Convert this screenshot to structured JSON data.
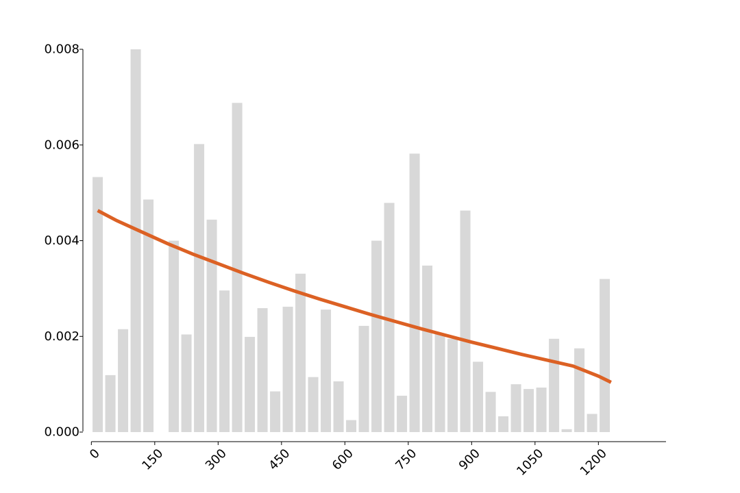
{
  "chart_data": {
    "type": "bar",
    "title": "",
    "xlabel": "",
    "ylabel": "",
    "bar_color": "#d8d8d8",
    "line_color": "#dc6124",
    "bin_width": 30,
    "xlim": [
      -20,
      1360
    ],
    "ylim": [
      -0.0002,
      0.008
    ],
    "x_ticks": [
      0,
      150,
      300,
      450,
      600,
      750,
      900,
      1050,
      1200
    ],
    "x_tick_labels": [
      "0",
      "150",
      "300",
      "450",
      "600",
      "750",
      "900",
      "1050",
      "1200"
    ],
    "y_ticks": [
      0.0,
      0.002,
      0.004,
      0.006,
      0.008
    ],
    "y_tick_labels": [
      "0.000",
      "0.002",
      "0.004",
      "0.006",
      "0.008"
    ],
    "series": [
      {
        "kind": "bar",
        "x": [
          15,
          45,
          75,
          105,
          135,
          165,
          195,
          225,
          255,
          285,
          315,
          345,
          375,
          405,
          435,
          465,
          495,
          525,
          555,
          585,
          615,
          645,
          675,
          705,
          735,
          765,
          795,
          825,
          855,
          885,
          915,
          945,
          975,
          1005,
          1035,
          1065,
          1095,
          1125,
          1155,
          1185,
          1215
        ],
        "values": [
          0.00533,
          0.00119,
          0.00215,
          0.008,
          0.00486,
          0.0,
          0.004,
          0.00204,
          0.00602,
          0.00444,
          0.00296,
          0.00688,
          0.00199,
          0.00259,
          0.00085,
          0.00262,
          0.00331,
          0.00115,
          0.00256,
          0.00106,
          0.00025,
          0.00222,
          0.004,
          0.00479,
          0.00076,
          0.00582,
          0.00348,
          0.00206,
          0.00195,
          0.00463,
          0.00147,
          0.00084,
          0.00033,
          0.001,
          0.0009,
          0.00093,
          0.00195,
          6e-05,
          0.00175,
          0.00038,
          0.0032
        ]
      },
      {
        "kind": "line",
        "x": [
          15,
          60,
          120,
          180,
          240,
          300,
          360,
          420,
          480,
          540,
          600,
          660,
          720,
          780,
          840,
          900,
          960,
          1020,
          1080,
          1140,
          1200,
          1230
        ],
        "values": [
          0.00463,
          0.00442,
          0.00418,
          0.00394,
          0.00372,
          0.00352,
          0.00332,
          0.00313,
          0.00295,
          0.00278,
          0.00262,
          0.00246,
          0.00231,
          0.00216,
          0.00202,
          0.00188,
          0.00175,
          0.00162,
          0.0015,
          0.00138,
          0.00117,
          0.00104
        ]
      }
    ]
  }
}
